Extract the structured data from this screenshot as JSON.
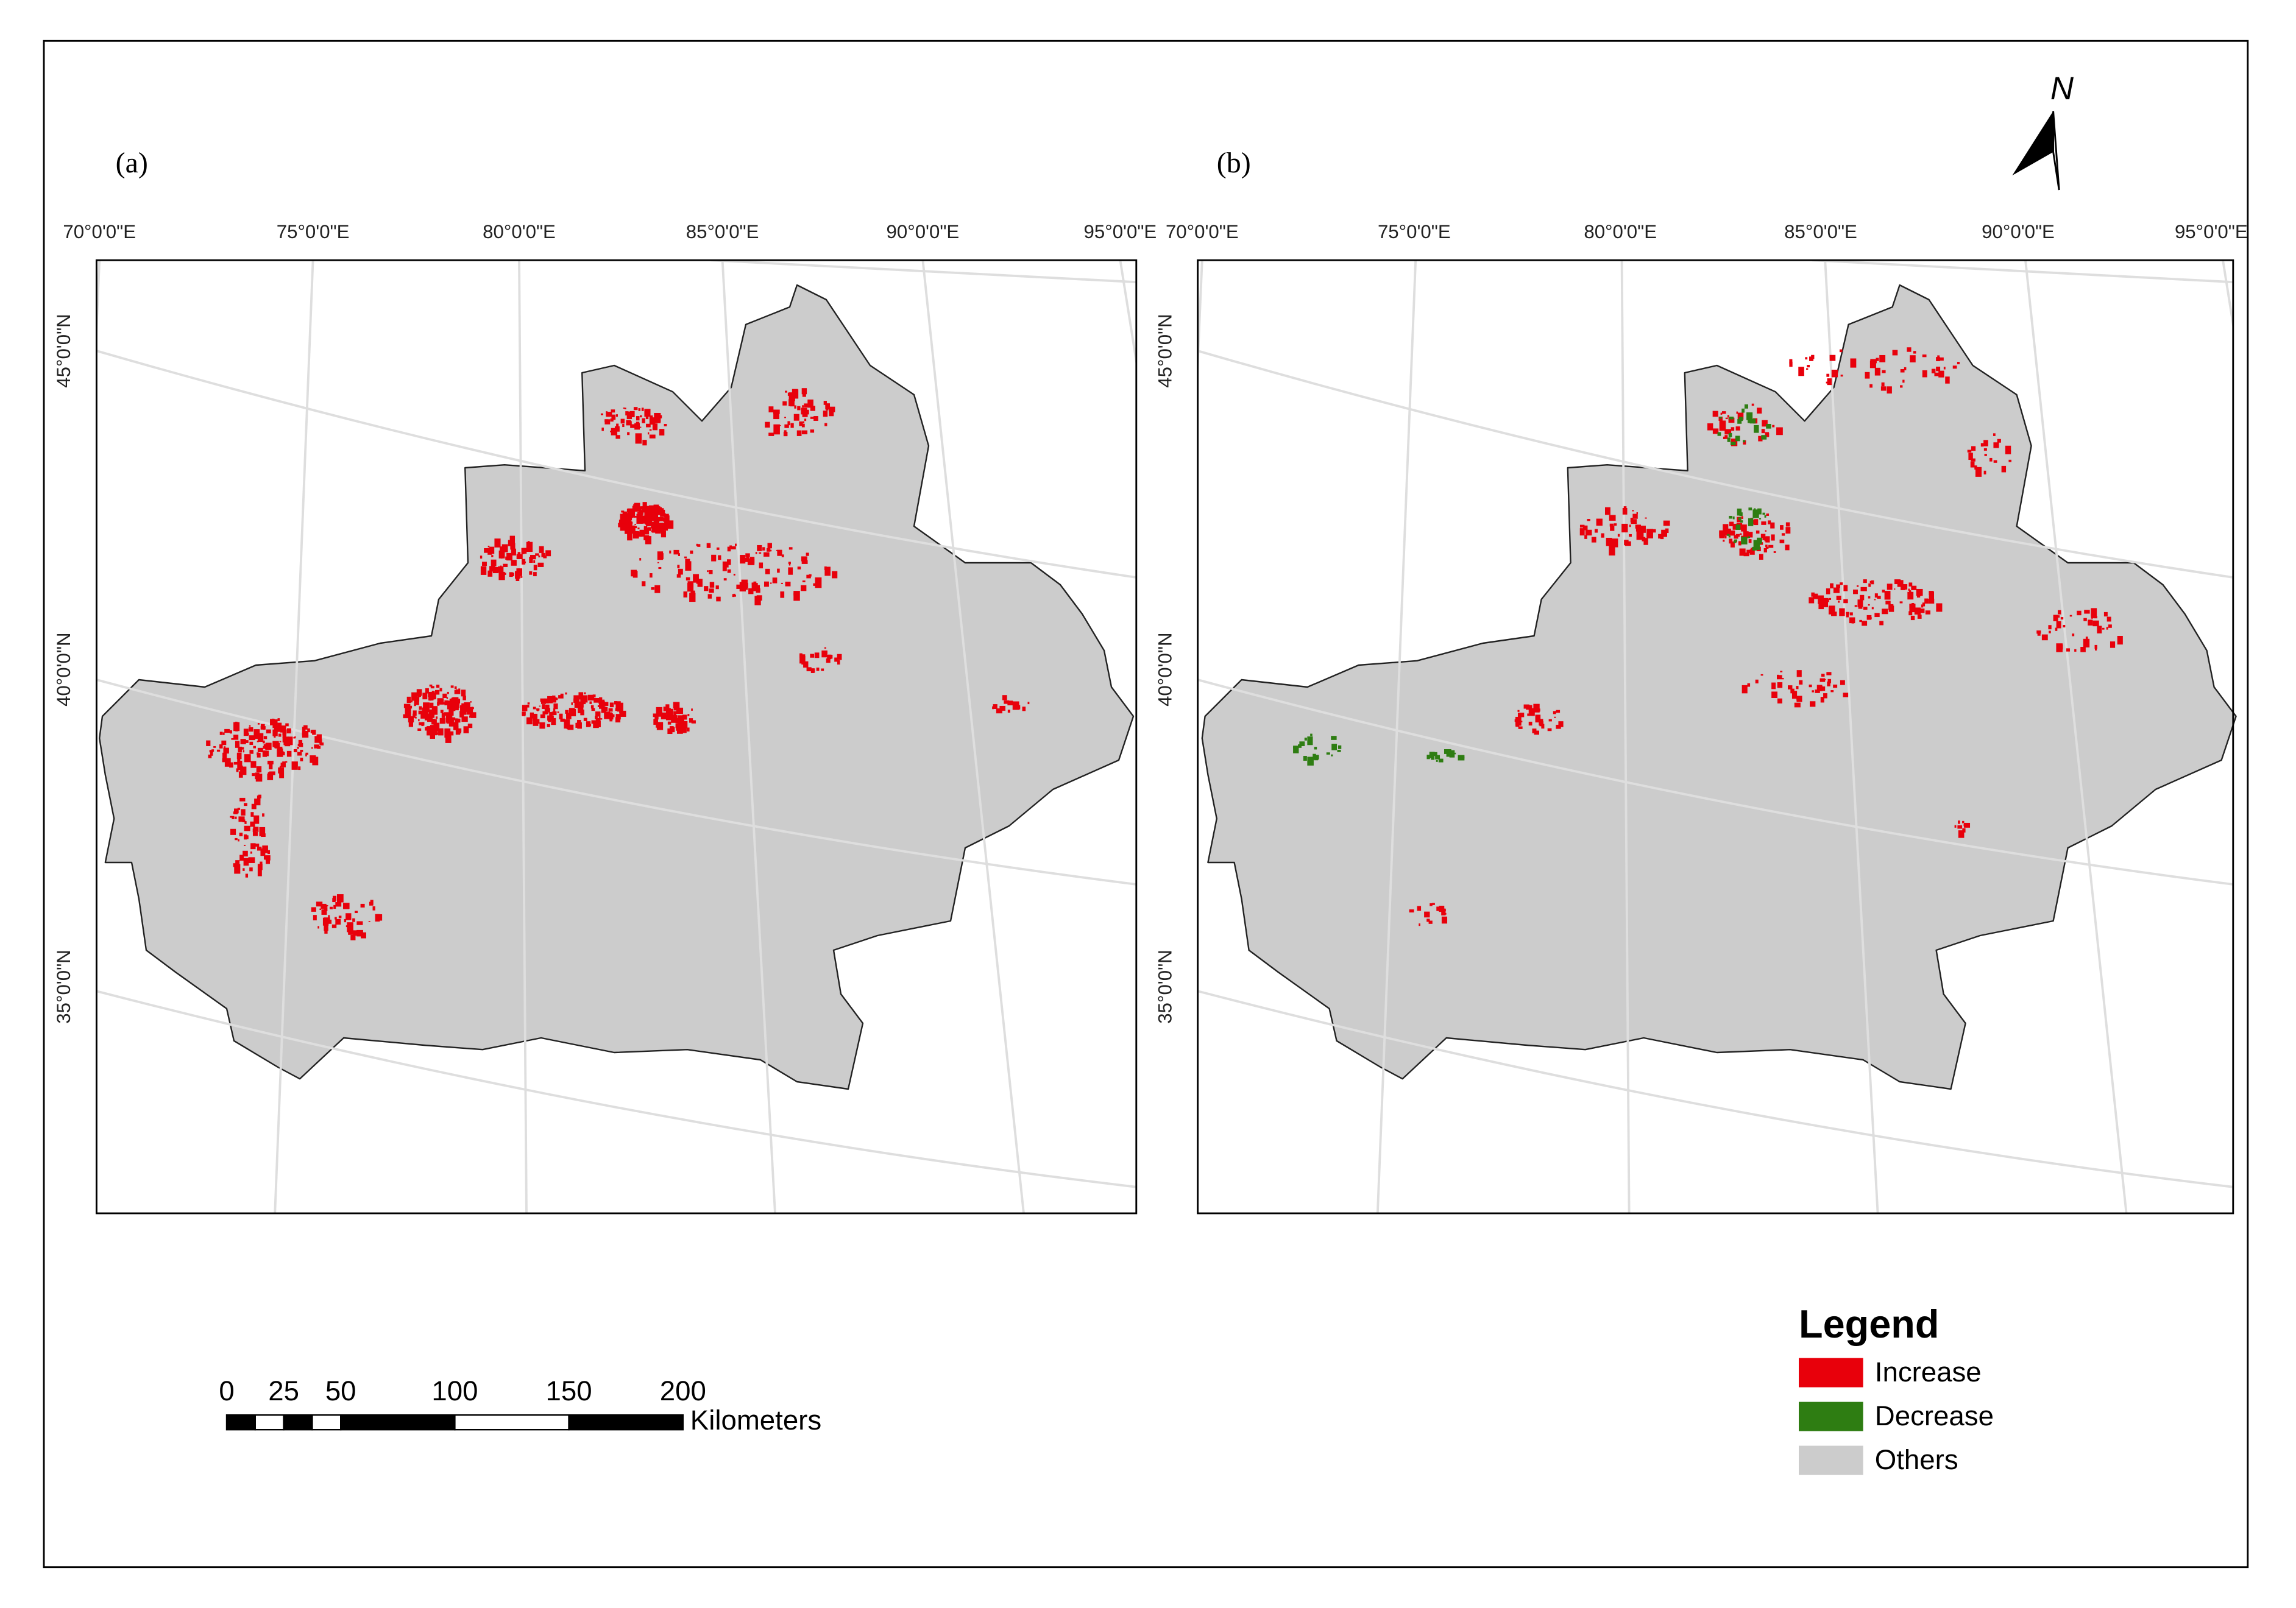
{
  "panels": [
    {
      "label": "(a)"
    },
    {
      "label": "(b)"
    }
  ],
  "longitude_labels": [
    "70°0'0\"E",
    "75°0'0\"E",
    "80°0'0\"E",
    "85°0'0\"E",
    "90°0'0\"E",
    "95°0'0\"E"
  ],
  "latitude_labels": [
    "45°0'0\"N",
    "40°0'0\"N",
    "35°0'0\"N"
  ],
  "north_arrow": "N",
  "scale_bar": {
    "ticks": [
      0,
      25,
      50,
      100,
      150,
      200
    ],
    "unit": "Kilometers"
  },
  "legend": {
    "title": "Legend",
    "items": [
      {
        "name": "Increase",
        "color": "#e8000b"
      },
      {
        "name": "Decrease",
        "color": "#2e7d12"
      },
      {
        "name": "Others",
        "color": "#cccccc"
      }
    ]
  }
}
